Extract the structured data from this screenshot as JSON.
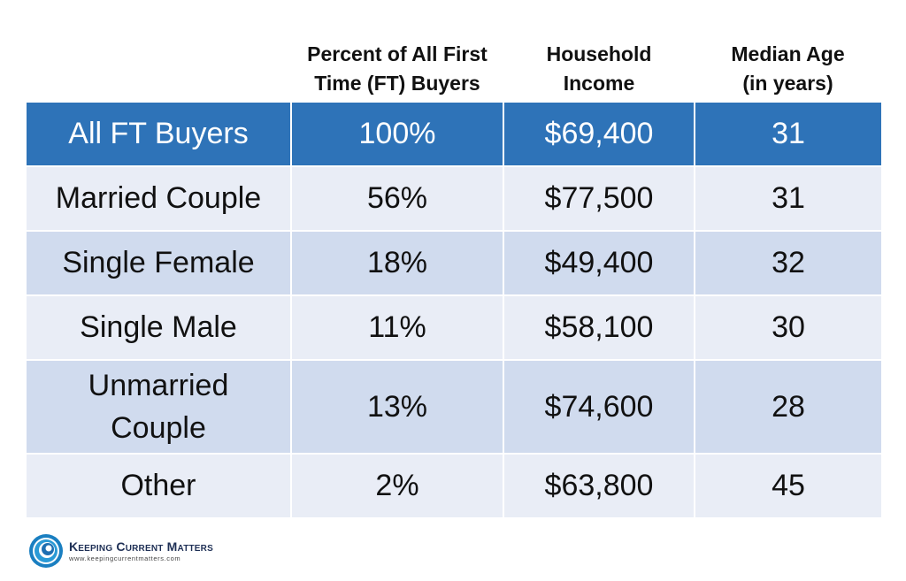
{
  "headers": {
    "col1": "",
    "col2_line1": "Percent of All First",
    "col2_line2": "Time (FT) Buyers",
    "col3_line1": "Household",
    "col3_line2": "Income",
    "col4_line1": "Median Age",
    "col4_line2": "(in years)"
  },
  "rows": [
    {
      "label": "All FT Buyers",
      "label_line2": "",
      "percent": "100%",
      "income": "$69,400",
      "age": "31"
    },
    {
      "label": "Married Couple",
      "label_line2": "",
      "percent": "56%",
      "income": "$77,500",
      "age": "31"
    },
    {
      "label": "Single Female",
      "label_line2": "",
      "percent": "18%",
      "income": "$49,400",
      "age": "32"
    },
    {
      "label": "Single Male",
      "label_line2": "",
      "percent": "11%",
      "income": "$58,100",
      "age": "30"
    },
    {
      "label": "Unmarried",
      "label_line2": "Couple",
      "percent": "13%",
      "income": "$74,600",
      "age": "28"
    },
    {
      "label": "Other",
      "label_line2": "",
      "percent": "2%",
      "income": "$63,800",
      "age": "45"
    }
  ],
  "footer": {
    "brand": "Keeping Current Matters",
    "url": "www.keepingcurrentmatters.com"
  },
  "colors": {
    "highlight_row": "#2e73b8",
    "light_row": "#e9edf6",
    "dark_row": "#d0dbee"
  }
}
